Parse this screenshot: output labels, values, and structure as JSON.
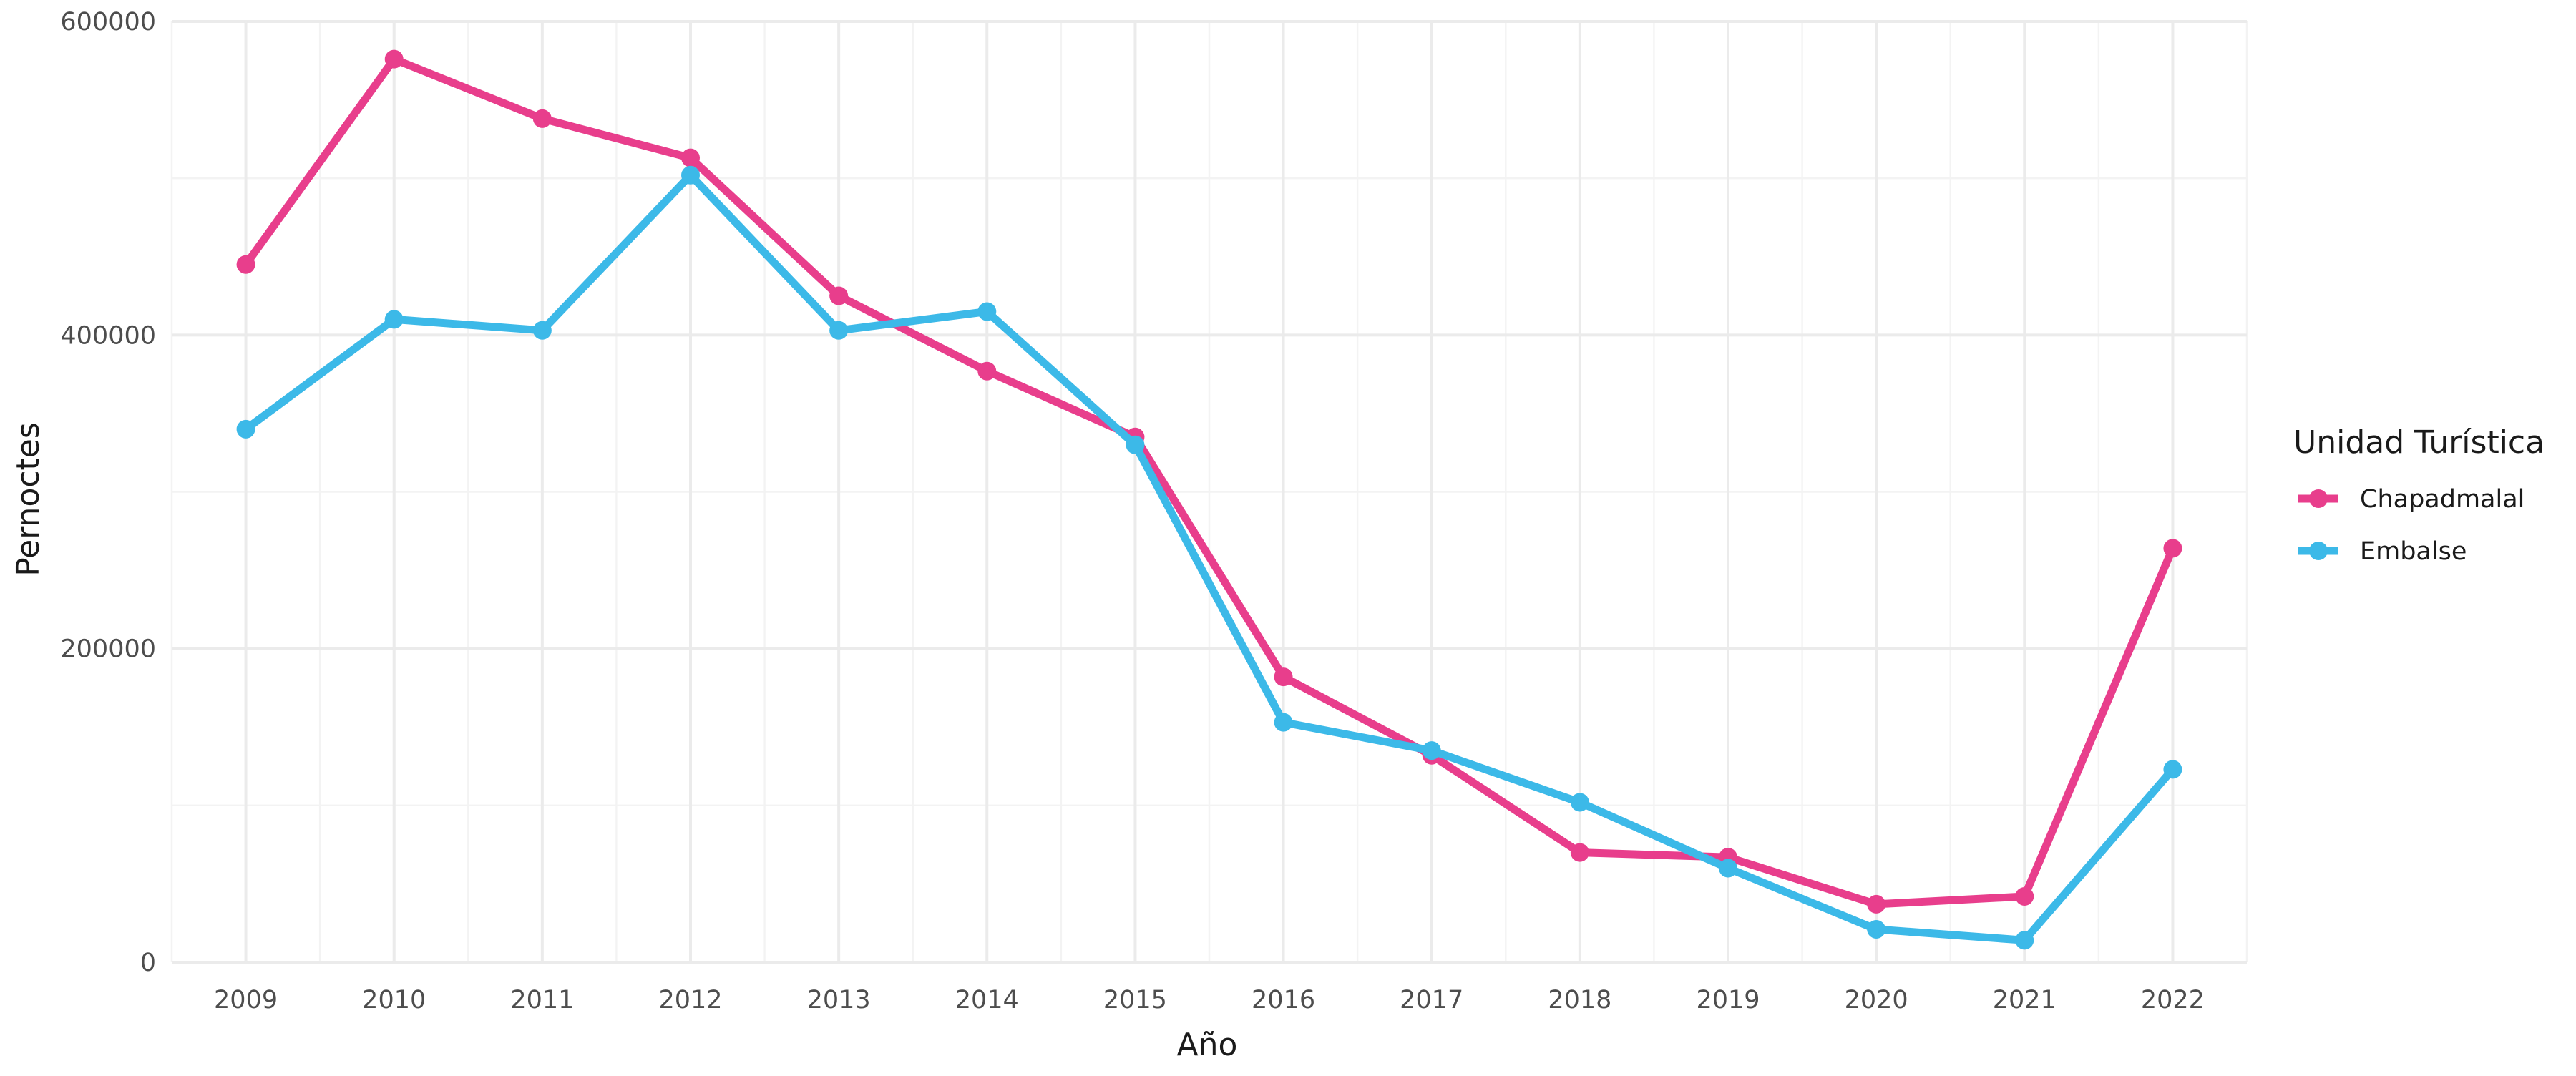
{
  "chart_data": {
    "type": "line",
    "title": "",
    "xlabel": "Año",
    "ylabel": "Pernoctes",
    "x": [
      2009,
      2010,
      2011,
      2012,
      2013,
      2014,
      2015,
      2016,
      2017,
      2018,
      2019,
      2020,
      2021,
      2022
    ],
    "ylim": [
      0,
      600000
    ],
    "xlim": [
      2008.5,
      2022.5
    ],
    "y_ticks": [
      0,
      200000,
      400000,
      600000
    ],
    "y_tick_labels": [
      "0",
      "200000",
      "400000",
      "600000"
    ],
    "x_tick_labels": [
      "2009",
      "2010",
      "2011",
      "2012",
      "2013",
      "2014",
      "2015",
      "2016",
      "2017",
      "2018",
      "2019",
      "2020",
      "2021",
      "2022"
    ],
    "grid": true,
    "legend": {
      "title": "Unidad Turística",
      "position": "right"
    },
    "series": [
      {
        "name": "Chapadmalal",
        "color": "#E83E8C",
        "values": [
          445000,
          576000,
          538000,
          513000,
          425000,
          377000,
          335000,
          182000,
          132000,
          70000,
          67000,
          37000,
          42000,
          264000
        ]
      },
      {
        "name": "Embalse",
        "color": "#3CB9E8",
        "values": [
          340000,
          410000,
          403000,
          502000,
          403000,
          415000,
          330000,
          153000,
          135000,
          102000,
          60000,
          21000,
          14000,
          123000
        ]
      }
    ]
  }
}
